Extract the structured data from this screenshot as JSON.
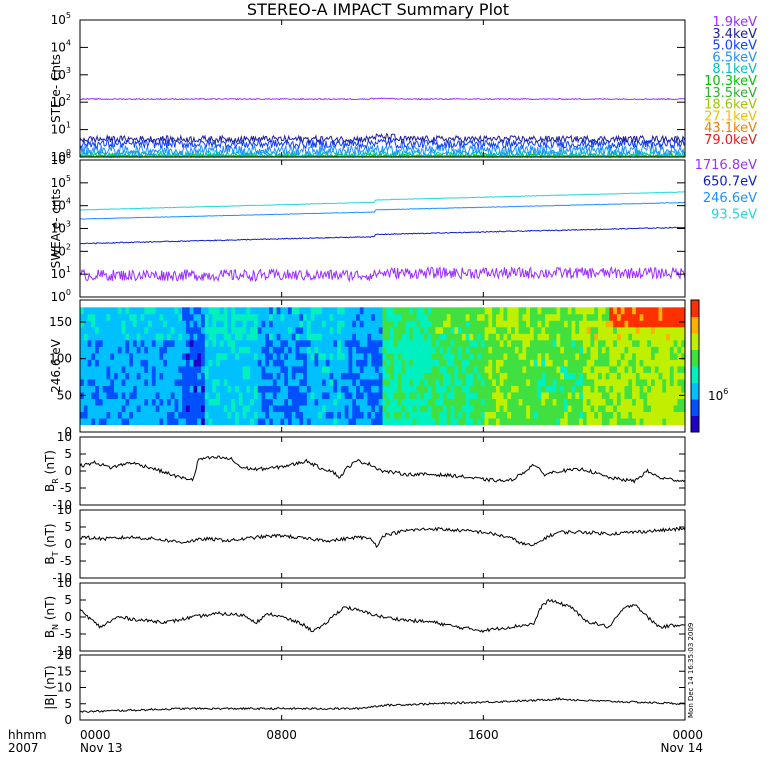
{
  "title": "STEREO-A IMPACT Summary Plot",
  "time_axis": {
    "year": "2007",
    "label": "hhmm",
    "ticks": [
      {
        "hours": 0,
        "time": "0000",
        "date": "Nov 13"
      },
      {
        "hours": 8,
        "time": "0800",
        "date": ""
      },
      {
        "hours": 16,
        "time": "1600",
        "date": ""
      },
      {
        "hours": 24,
        "time": "0000",
        "date": "Nov 14"
      }
    ]
  },
  "stamp": "Mon Dec 14 16:35:03 2009",
  "chart_data": [
    {
      "id": "ste",
      "type": "line",
      "ylabel": "STE e- Cnts",
      "yscale": "log",
      "ylim": [
        1,
        100000
      ],
      "y_ticks": [
        {
          "v": 1,
          "exp": "0"
        },
        {
          "v": 10,
          "exp": "1"
        },
        {
          "v": 100,
          "exp": "2"
        },
        {
          "v": 1000,
          "exp": "3"
        },
        {
          "v": 10000,
          "exp": "4"
        },
        {
          "v": 100000,
          "exp": "5"
        }
      ],
      "series": [
        {
          "name": "1.9keV",
          "color": "#9b30ff",
          "level": 130,
          "noise": 0.02,
          "step": 1.05
        },
        {
          "name": "3.4keV",
          "color": "#2020a0",
          "level": 4.5,
          "noise": 0.12,
          "step": 1.2
        },
        {
          "name": "5.0keV",
          "color": "#1040ff",
          "level": 3.0,
          "noise": 0.15,
          "step": 1.15
        },
        {
          "name": "6.5keV",
          "color": "#1e90ff",
          "level": 1.8,
          "noise": 0.18,
          "step": 1.0
        },
        {
          "name": "8.1keV",
          "color": "#00c0c0",
          "level": 1.3,
          "noise": 0.12,
          "step": 1.0
        },
        {
          "name": "10.3keV",
          "color": "#00c800",
          "level": 1.1,
          "noise": 0.08,
          "step": 1.0
        },
        {
          "name": "13.5keV",
          "color": "#30b030",
          "level": 1.05,
          "noise": 0.05,
          "step": 1.0
        },
        {
          "name": "18.6keV",
          "color": "#a0c800",
          "level": 1.02,
          "noise": 0.04,
          "step": 1.0
        },
        {
          "name": "27.1keV",
          "color": "#f0c000",
          "level": 1.0,
          "noise": 0.03,
          "step": 1.0
        },
        {
          "name": "43.1keV",
          "color": "#f08000",
          "level": 1.0,
          "noise": 0.02,
          "step": 1.0
        },
        {
          "name": "79.0keV",
          "color": "#e02020",
          "level": 1.0,
          "noise": 0.01,
          "step": 1.0
        }
      ]
    },
    {
      "id": "swea",
      "type": "line",
      "ylabel": "SWEA e- cnts",
      "yscale": "log",
      "ylim": [
        1,
        1000000
      ],
      "y_ticks": [
        {
          "v": 1,
          "exp": "0"
        },
        {
          "v": 10,
          "exp": "1"
        },
        {
          "v": 100,
          "exp": "2"
        },
        {
          "v": 1000,
          "exp": "3"
        },
        {
          "v": 10000,
          "exp": "4"
        },
        {
          "v": 100000,
          "exp": "5"
        },
        {
          "v": 1000000,
          "exp": "6"
        }
      ],
      "series": [
        {
          "name": "1716.8eV",
          "color": "#9b30ff",
          "start": 9,
          "end": 9,
          "noise": 0.25
        },
        {
          "name": "650.7eV",
          "color": "#1020c0",
          "start": 220,
          "end": 900,
          "noise": 0.02
        },
        {
          "name": "246.6eV",
          "color": "#1e90ff",
          "start": 2600,
          "end": 11000,
          "noise": 0.01
        },
        {
          "name": "93.5eV",
          "color": "#20d8d8",
          "start": 6500,
          "end": 32000,
          "noise": 0.01
        }
      ]
    },
    {
      "id": "pad",
      "type": "heatmap",
      "ylabel": "246.6 eV",
      "ylim": [
        0,
        180
      ],
      "y_ticks": [
        0,
        50,
        100,
        150
      ],
      "colorbar_label": "10",
      "colorbar_exp": "6",
      "colors": [
        "#2000c8",
        "#0050ff",
        "#00c0ff",
        "#00f0c0",
        "#40e040",
        "#c0f000",
        "#ffb000",
        "#ff3000"
      ]
    },
    {
      "id": "br",
      "type": "line",
      "ylabel": "B",
      "ylabel_sub": "R",
      "ylabel_unit": "(nT)",
      "ylim": [
        -10,
        10
      ],
      "y_ticks": [
        -10,
        -5,
        0,
        5,
        10
      ],
      "points": [
        [
          0,
          1.5
        ],
        [
          0.6,
          2.5
        ],
        [
          1.2,
          1
        ],
        [
          2,
          2.5
        ],
        [
          2.8,
          1
        ],
        [
          3.4,
          -0.5
        ],
        [
          4,
          -2
        ],
        [
          4.5,
          -2.5
        ],
        [
          4.7,
          3.5
        ],
        [
          5.5,
          4
        ],
        [
          6,
          3.5
        ],
        [
          6.4,
          1
        ],
        [
          7,
          0.5
        ],
        [
          7.8,
          1
        ],
        [
          8.5,
          2
        ],
        [
          9,
          3
        ],
        [
          9.5,
          1
        ],
        [
          10,
          0
        ],
        [
          10.3,
          -2
        ],
        [
          10.6,
          1
        ],
        [
          11,
          3
        ],
        [
          11.5,
          2
        ],
        [
          12,
          0
        ],
        [
          13,
          -1
        ],
        [
          14,
          -1
        ],
        [
          15,
          -1.5
        ],
        [
          16,
          -2.5
        ],
        [
          17,
          -3
        ],
        [
          17.5,
          -1
        ],
        [
          18,
          2
        ],
        [
          18.4,
          -1
        ],
        [
          19,
          0
        ],
        [
          20,
          0.5
        ],
        [
          21,
          -2
        ],
        [
          22,
          -3
        ],
        [
          22.5,
          0
        ],
        [
          23,
          -2
        ],
        [
          24,
          -3
        ]
      ]
    },
    {
      "id": "bt",
      "type": "line",
      "ylabel": "B",
      "ylabel_sub": "T",
      "ylabel_unit": "(nT)",
      "ylim": [
        -10,
        10
      ],
      "y_ticks": [
        -10,
        -5,
        0,
        5,
        10
      ],
      "points": [
        [
          0,
          2
        ],
        [
          1,
          1.5
        ],
        [
          2,
          2
        ],
        [
          3,
          1.5
        ],
        [
          4,
          0.5
        ],
        [
          5,
          1.5
        ],
        [
          6,
          1
        ],
        [
          7,
          2
        ],
        [
          8,
          2.5
        ],
        [
          9,
          1.5
        ],
        [
          10,
          1
        ],
        [
          11,
          2
        ],
        [
          11.6,
          1.5
        ],
        [
          11.8,
          -1
        ],
        [
          12,
          2.5
        ],
        [
          13,
          4
        ],
        [
          14,
          4.5
        ],
        [
          15,
          4
        ],
        [
          16,
          3.5
        ],
        [
          17,
          2
        ],
        [
          17.6,
          0
        ],
        [
          18,
          -0.5
        ],
        [
          18.5,
          2
        ],
        [
          19,
          3.5
        ],
        [
          20,
          3.5
        ],
        [
          21,
          3
        ],
        [
          22,
          3.5
        ],
        [
          23,
          4
        ],
        [
          24,
          4.5
        ]
      ]
    },
    {
      "id": "bn",
      "type": "line",
      "ylabel": "B",
      "ylabel_sub": "N",
      "ylabel_unit": "(nT)",
      "ylim": [
        -10,
        10
      ],
      "y_ticks": [
        -10,
        -5,
        0,
        5,
        10
      ],
      "points": [
        [
          0,
          2
        ],
        [
          0.8,
          -3
        ],
        [
          1.5,
          0
        ],
        [
          2.5,
          -1
        ],
        [
          3.5,
          -1.5
        ],
        [
          4.5,
          0
        ],
        [
          5.5,
          1
        ],
        [
          6.5,
          0.5
        ],
        [
          7,
          -1.5
        ],
        [
          7.5,
          1
        ],
        [
          8,
          0
        ],
        [
          8.8,
          -2
        ],
        [
          9.2,
          -4
        ],
        [
          9.6,
          -3
        ],
        [
          10,
          0
        ],
        [
          10.5,
          3
        ],
        [
          11,
          2
        ],
        [
          12,
          0
        ],
        [
          13,
          -1
        ],
        [
          14,
          -1.5
        ],
        [
          15,
          -3
        ],
        [
          16,
          -4
        ],
        [
          17,
          -3
        ],
        [
          18,
          -2
        ],
        [
          18.3,
          3
        ],
        [
          18.6,
          5
        ],
        [
          19,
          4
        ],
        [
          19.5,
          3
        ],
        [
          20,
          -1
        ],
        [
          21,
          -3
        ],
        [
          21.5,
          2
        ],
        [
          22,
          4
        ],
        [
          22.5,
          0
        ],
        [
          23,
          -3
        ],
        [
          24,
          -2
        ]
      ]
    },
    {
      "id": "bmag",
      "type": "line",
      "ylabel": "|B|",
      "ylabel_sub": "",
      "ylabel_unit": "(nT)",
      "ylim": [
        0,
        20
      ],
      "y_ticks": [
        0,
        5,
        10,
        15,
        20
      ],
      "points": [
        [
          0,
          2.5
        ],
        [
          2,
          3
        ],
        [
          4,
          3.5
        ],
        [
          6,
          3.5
        ],
        [
          8,
          3.5
        ],
        [
          10,
          3.5
        ],
        [
          11,
          3.5
        ],
        [
          12,
          4.5
        ],
        [
          14,
          5
        ],
        [
          16,
          5.5
        ],
        [
          18,
          6
        ],
        [
          19,
          6.5
        ],
        [
          20,
          6
        ],
        [
          22,
          5.5
        ],
        [
          24,
          5
        ]
      ]
    }
  ]
}
